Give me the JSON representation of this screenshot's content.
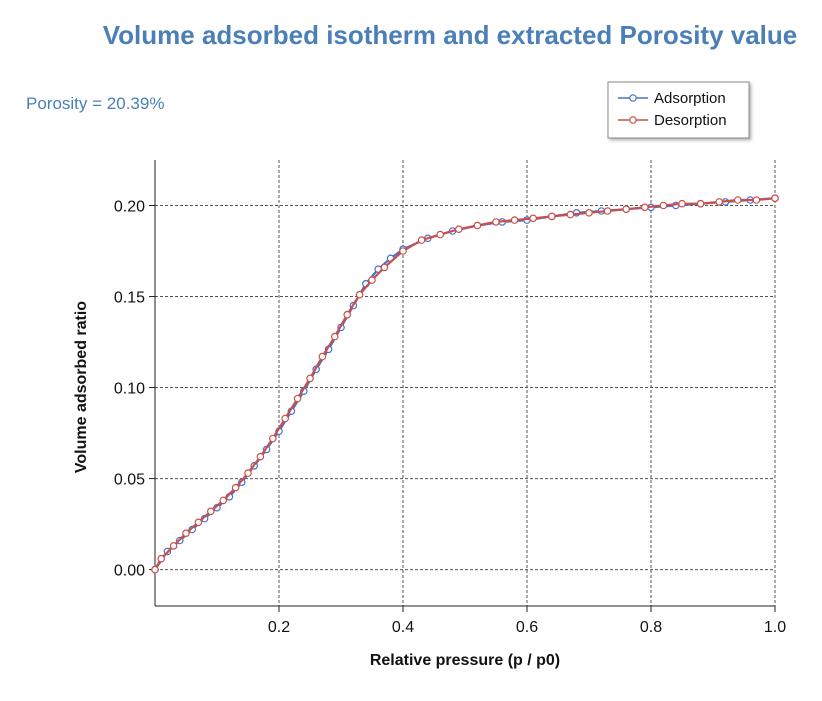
{
  "chart_data": {
    "type": "line",
    "title": "Volume adsorbed isotherm and extracted Porosity value",
    "annotation": "Porosity = 20.39%",
    "xlabel": "Relative pressure (p / p0)",
    "ylabel": "Volume adsorbed ratio",
    "xlim": [
      0,
      1.0
    ],
    "ylim": [
      -0.02,
      0.225
    ],
    "xticks": [
      0.2,
      0.4,
      0.6,
      0.8,
      1.0
    ],
    "xtick_labels": [
      "0.2",
      "0.4",
      "0.6",
      "0.8",
      "1.0"
    ],
    "yticks": [
      0.0,
      0.05,
      0.1,
      0.15,
      0.2
    ],
    "ytick_labels": [
      "0.00",
      "0.05",
      "0.10",
      "0.15",
      "0.20"
    ],
    "grid": true,
    "legend_position": "top-right",
    "series": [
      {
        "name": "Adsorption",
        "color": "#4a6fc8",
        "x": [
          0.0,
          0.02,
          0.04,
          0.06,
          0.08,
          0.1,
          0.12,
          0.14,
          0.16,
          0.18,
          0.2,
          0.22,
          0.24,
          0.26,
          0.28,
          0.3,
          0.32,
          0.34,
          0.36,
          0.38,
          0.4,
          0.44,
          0.48,
          0.52,
          0.56,
          0.6,
          0.64,
          0.68,
          0.72,
          0.76,
          0.8,
          0.84,
          0.88,
          0.92,
          0.96,
          1.0
        ],
        "y": [
          0.0,
          0.01,
          0.016,
          0.022,
          0.028,
          0.034,
          0.04,
          0.048,
          0.057,
          0.066,
          0.076,
          0.087,
          0.098,
          0.11,
          0.121,
          0.133,
          0.145,
          0.157,
          0.165,
          0.171,
          0.176,
          0.182,
          0.186,
          0.189,
          0.191,
          0.192,
          0.194,
          0.196,
          0.197,
          0.198,
          0.199,
          0.2,
          0.201,
          0.202,
          0.203,
          0.204
        ]
      },
      {
        "name": "Desorption",
        "color": "#c8504a",
        "x": [
          1.0,
          0.97,
          0.94,
          0.91,
          0.88,
          0.85,
          0.82,
          0.79,
          0.76,
          0.73,
          0.7,
          0.67,
          0.64,
          0.61,
          0.58,
          0.55,
          0.52,
          0.49,
          0.46,
          0.43,
          0.4,
          0.37,
          0.35,
          0.33,
          0.31,
          0.29,
          0.27,
          0.25,
          0.23,
          0.21,
          0.19,
          0.17,
          0.15,
          0.13,
          0.11,
          0.09,
          0.07,
          0.05,
          0.03,
          0.01,
          0.0
        ],
        "y": [
          0.204,
          0.203,
          0.203,
          0.202,
          0.201,
          0.201,
          0.2,
          0.199,
          0.198,
          0.197,
          0.196,
          0.195,
          0.194,
          0.193,
          0.192,
          0.191,
          0.189,
          0.187,
          0.184,
          0.181,
          0.175,
          0.166,
          0.159,
          0.151,
          0.14,
          0.128,
          0.117,
          0.105,
          0.094,
          0.083,
          0.072,
          0.062,
          0.053,
          0.045,
          0.038,
          0.032,
          0.026,
          0.02,
          0.013,
          0.006,
          0.0
        ]
      }
    ]
  }
}
